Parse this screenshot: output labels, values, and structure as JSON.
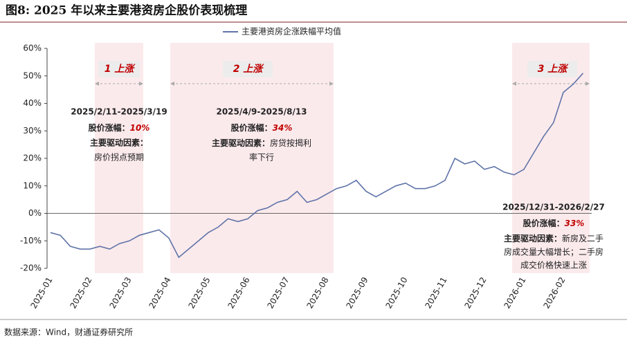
{
  "chart_data": {
    "type": "line",
    "title": "图8: 2025 年以来主要港资房企股价表现梳理",
    "source": "数据来源：Wind，财通证券研究所",
    "categories": [
      "2025-01",
      null,
      null,
      null,
      "2025-02",
      null,
      null,
      null,
      "2025-03",
      null,
      null,
      null,
      "2025-04",
      null,
      null,
      null,
      "2025-05",
      null,
      null,
      null,
      "2025-06",
      null,
      null,
      null,
      "2025-07",
      null,
      null,
      null,
      "2025-08",
      null,
      null,
      null,
      "2025-09",
      null,
      null,
      null,
      "2025-10",
      null,
      null,
      null,
      "2025-11",
      null,
      null,
      null,
      "2025-12",
      null,
      null,
      null,
      "2026-01",
      null,
      null,
      null,
      "2026-02",
      null,
      null
    ],
    "series": [
      {
        "name": "主要港资房企涨跌幅平均值",
        "color": "#5f73a8",
        "values": [
          -7,
          -8,
          -12,
          -13,
          -13,
          -12,
          -13,
          -11,
          -10,
          -8,
          -7,
          -6,
          -9,
          -16,
          -13,
          -10,
          -7,
          -5,
          -2,
          -3,
          -2,
          1,
          2,
          4,
          5,
          8,
          4,
          5,
          7,
          9,
          10,
          12,
          8,
          6,
          8,
          10,
          11,
          9,
          9,
          10,
          12,
          20,
          18,
          19,
          16,
          17,
          15,
          14,
          16,
          22,
          28,
          33,
          44,
          47,
          51
        ]
      }
    ],
    "ylim": [
      -20,
      60
    ],
    "yticks": [
      {
        "value": -20,
        "label": "-20%"
      },
      {
        "value": -10,
        "label": "-10%"
      },
      {
        "value": 0,
        "label": "0%"
      },
      {
        "value": 10,
        "label": "10%"
      },
      {
        "value": 20,
        "label": "20%"
      },
      {
        "value": 30,
        "label": "30%"
      },
      {
        "value": 40,
        "label": "40%"
      },
      {
        "value": 50,
        "label": "50%"
      },
      {
        "value": 60,
        "label": "60%"
      }
    ],
    "annotations": [
      {
        "label": "1 上涨",
        "period": "2025/2/11-2025/3/19",
        "gain_label": "股价涨幅：",
        "gain": "10%",
        "drivers": [
          "主要驱动因素：",
          "房价拐点预期"
        ]
      },
      {
        "label": "2 上涨",
        "period": "2025/4/9-2025/8/13",
        "gain_label": "股价涨幅：",
        "gain": "34%",
        "drivers": [
          "主要驱动因素：",
          "房贷按揭利",
          "率下行"
        ]
      },
      {
        "label": "3 上涨",
        "period": "2025/12/31-2026/2/27",
        "gain_label": "股价涨幅：",
        "gain": "33%",
        "drivers": [
          "主要驱动因素：",
          "新房及二手",
          "房成交量大幅增长；二手房",
          "成交价格快速上涨"
        ]
      }
    ]
  }
}
